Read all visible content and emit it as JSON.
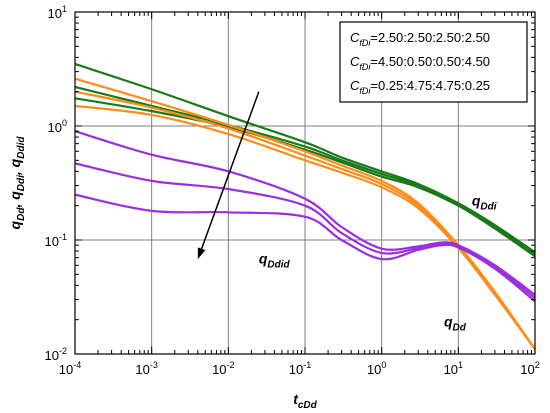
{
  "chart_data": {
    "type": "line",
    "xscale": "log",
    "yscale": "log",
    "xlim": [
      0.0001,
      100
    ],
    "ylim": [
      0.01,
      10
    ],
    "grid": true,
    "x_ticks": [
      {
        "base": "10",
        "exp": "-4"
      },
      {
        "base": "10",
        "exp": "-3"
      },
      {
        "base": "10",
        "exp": "-2"
      },
      {
        "base": "10",
        "exp": "-1"
      },
      {
        "base": "10",
        "exp": "0"
      },
      {
        "base": "10",
        "exp": "1"
      },
      {
        "base": "10",
        "exp": "2"
      }
    ],
    "y_ticks": [
      {
        "base": "10",
        "exp": "-2"
      },
      {
        "base": "10",
        "exp": "-1"
      },
      {
        "base": "10",
        "exp": "0"
      },
      {
        "base": "10",
        "exp": "1"
      }
    ],
    "xlabel": {
      "main": "t",
      "sub": "cDd"
    },
    "ylabel": [
      {
        "main": "q",
        "sub": "Dd"
      },
      {
        "sep": ", "
      },
      {
        "main": "q",
        "sub": "Ddi"
      },
      {
        "sep": ", "
      },
      {
        "main": "q",
        "sub": "Ddid"
      }
    ],
    "legend": {
      "placement": "top-right",
      "entries": [
        {
          "var": "C",
          "sub": "fDi",
          "value": "=2.50:2.50:2.50:2.50"
        },
        {
          "var": "C",
          "sub": "fDi",
          "value": "=4.50:0.50:0.50:4.50"
        },
        {
          "var": "C",
          "sub": "fDi",
          "value": "=0.25:4.75:4.75:0.25"
        }
      ]
    },
    "annotations": [
      {
        "main": "q",
        "sub": "Ddi",
        "x": 15,
        "y": 0.2
      },
      {
        "main": "q",
        "sub": "Ddid",
        "x": 0.025,
        "y": 0.062
      },
      {
        "main": "q",
        "sub": "Dd",
        "x": 6.5,
        "y": 0.0175
      }
    ],
    "arrow": {
      "from": [
        0.025,
        2.0
      ],
      "to": [
        0.004,
        0.068
      ]
    },
    "colors": {
      "qDdi": "#1a7a1a",
      "qDd": "#ff8c1a",
      "qDdid": "#9b2fe0",
      "grid": "#7f7f7f"
    },
    "series": [
      {
        "group": "qDdi",
        "x": [
          0.0001,
          0.001,
          0.01,
          0.1,
          0.3,
          1,
          3,
          10,
          30,
          100
        ],
        "y": [
          3.5,
          2.1,
          1.22,
          0.72,
          0.53,
          0.4,
          0.31,
          0.21,
          0.135,
          0.078
        ]
      },
      {
        "group": "qDdi",
        "x": [
          0.0001,
          0.001,
          0.01,
          0.1,
          0.3,
          1,
          3,
          10,
          30,
          100
        ],
        "y": [
          2.2,
          1.5,
          1.02,
          0.66,
          0.5,
          0.38,
          0.3,
          0.205,
          0.13,
          0.075
        ]
      },
      {
        "group": "qDdi",
        "x": [
          0.0001,
          0.001,
          0.01,
          0.1,
          0.3,
          1,
          3,
          10,
          30,
          100
        ],
        "y": [
          1.75,
          1.35,
          0.98,
          0.62,
          0.48,
          0.36,
          0.29,
          0.2,
          0.126,
          0.072
        ]
      },
      {
        "group": "qDd",
        "x": [
          0.0001,
          0.001,
          0.01,
          0.1,
          0.3,
          1,
          3,
          10,
          30,
          100
        ],
        "y": [
          2.6,
          1.65,
          1.02,
          0.6,
          0.45,
          0.33,
          0.21,
          0.09,
          0.035,
          0.011
        ]
      },
      {
        "group": "qDd",
        "x": [
          0.0001,
          0.001,
          0.01,
          0.1,
          0.3,
          1,
          3,
          10,
          30,
          100
        ],
        "y": [
          2.0,
          1.45,
          0.95,
          0.55,
          0.42,
          0.31,
          0.2,
          0.088,
          0.034,
          0.011
        ]
      },
      {
        "group": "qDd",
        "x": [
          0.0001,
          0.001,
          0.01,
          0.1,
          0.3,
          1,
          3,
          10,
          30,
          100
        ],
        "y": [
          1.5,
          1.25,
          0.85,
          0.5,
          0.39,
          0.29,
          0.19,
          0.085,
          0.033,
          0.011
        ]
      },
      {
        "group": "qDdid",
        "x": [
          0.0001,
          0.001,
          0.01,
          0.1,
          0.3,
          1,
          3,
          6,
          10,
          30,
          100
        ],
        "y": [
          0.9,
          0.56,
          0.4,
          0.23,
          0.13,
          0.084,
          0.088,
          0.095,
          0.09,
          0.06,
          0.033
        ]
      },
      {
        "group": "qDdid",
        "x": [
          0.0001,
          0.001,
          0.01,
          0.1,
          0.3,
          1,
          3,
          6,
          10,
          30,
          100
        ],
        "y": [
          0.47,
          0.33,
          0.28,
          0.2,
          0.115,
          0.077,
          0.085,
          0.093,
          0.088,
          0.058,
          0.031
        ]
      },
      {
        "group": "qDdid",
        "x": [
          0.0001,
          0.001,
          0.01,
          0.1,
          0.3,
          1,
          3,
          6,
          10,
          30,
          100
        ],
        "y": [
          0.25,
          0.18,
          0.175,
          0.16,
          0.1,
          0.068,
          0.082,
          0.09,
          0.086,
          0.056,
          0.029
        ]
      }
    ]
  }
}
